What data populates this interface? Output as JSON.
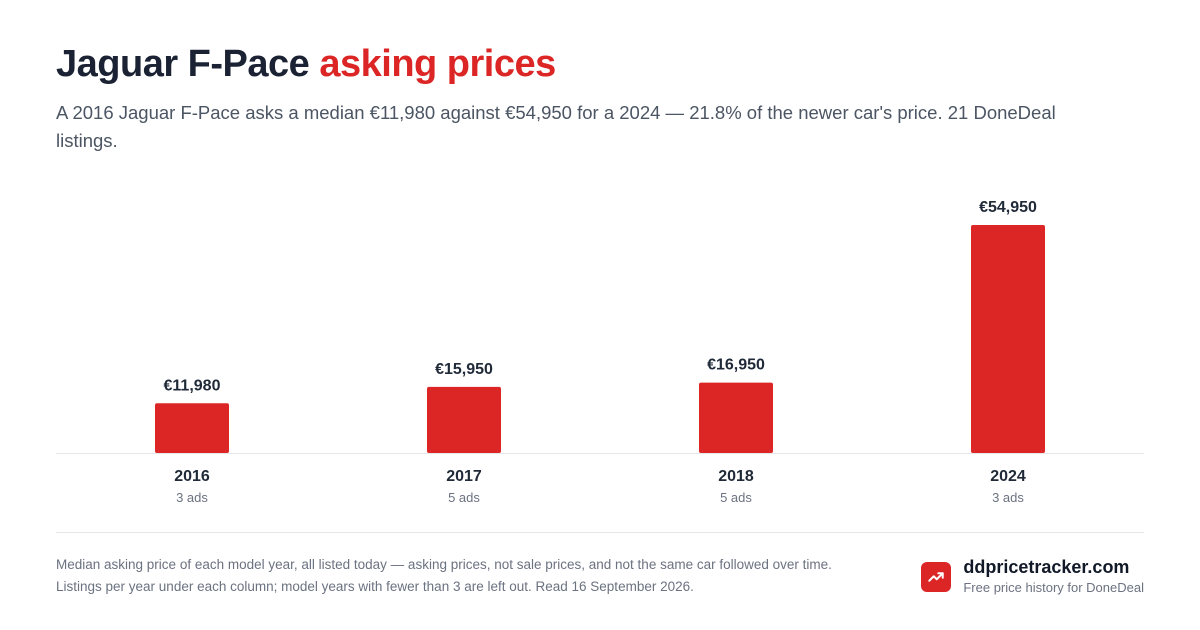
{
  "header": {
    "title_main": "Jaguar F-Pace",
    "title_accent": "asking prices",
    "subtitle": "A 2016 Jaguar F-Pace asks a median €11,980 against €54,950 for a 2024 — 21.8% of the newer car's price. 21 DoneDeal listings."
  },
  "chart_data": {
    "type": "bar",
    "title": "Jaguar F-Pace asking prices",
    "categories": [
      "2016",
      "2017",
      "2018",
      "2024"
    ],
    "values": [
      11980,
      15950,
      16950,
      54950
    ],
    "value_labels": [
      "€11,980",
      "€15,950",
      "€16,950",
      "€54,950"
    ],
    "counts": [
      "3 ads",
      "5 ads",
      "5 ads",
      "3 ads"
    ],
    "xlabel": "",
    "ylabel": "",
    "ylim": [
      0,
      54950
    ],
    "grid": false,
    "legend": "none",
    "bar_color": "#dc2626"
  },
  "footer": {
    "note": "Median asking price of each model year, all listed today — asking prices, not sale prices, and not the same car followed over time. Listings per year under each column; model years with fewer than 3 are left out. Read 16 September 2026.",
    "brand_name": "ddpricetracker.com",
    "brand_tagline": "Free price history for DoneDeal",
    "brand_icon": "trend-up-icon"
  },
  "colors": {
    "accent": "#dc2626",
    "text": "#1a2233",
    "muted": "#6b7280"
  }
}
